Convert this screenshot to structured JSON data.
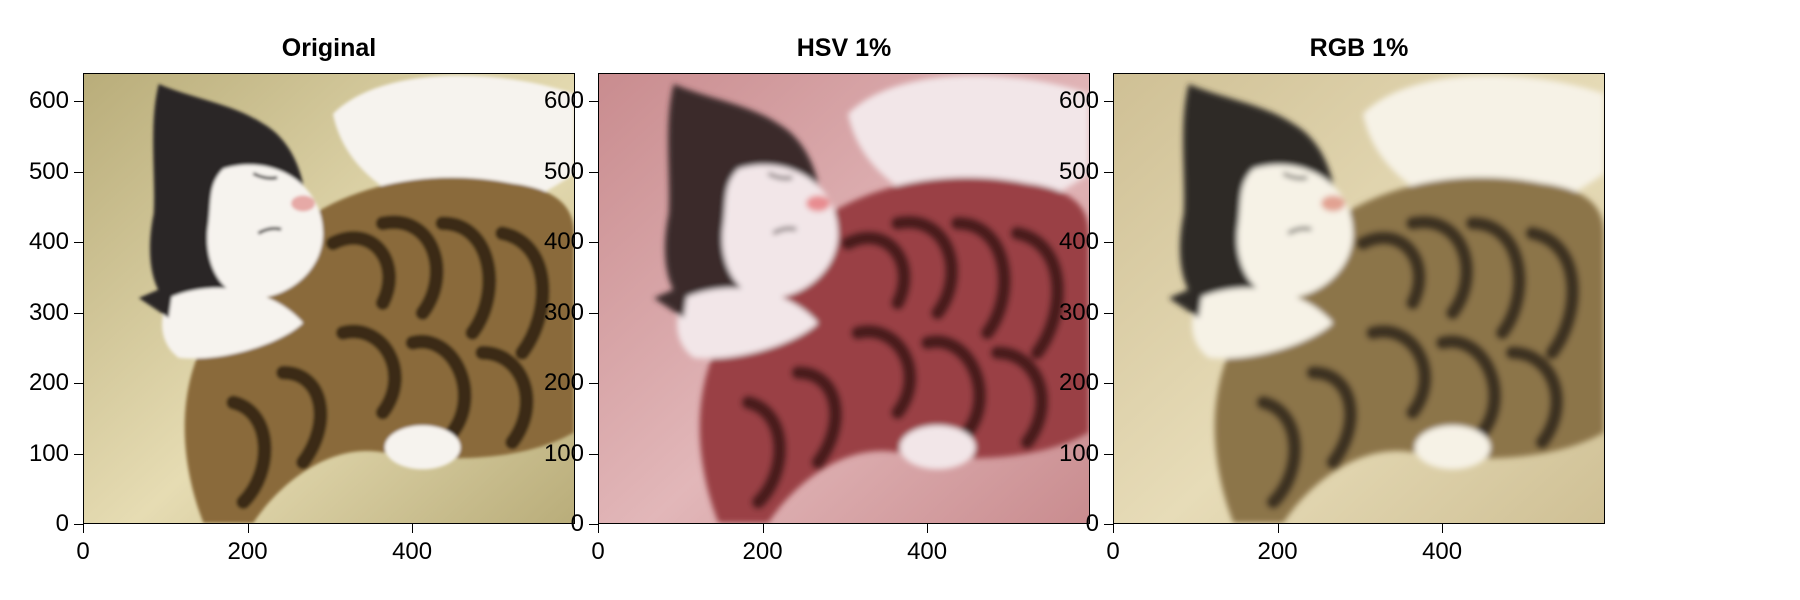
{
  "panels": [
    {
      "title": "Original",
      "image_subject": "kitten-photo",
      "tint": "natural",
      "palette": {
        "bg": "#b9ad7a",
        "bg_light": "#e6dcb3",
        "white": "#f6f3ee",
        "dark": "#2a2527",
        "fur": "#8a6a3a",
        "fur_dark": "#3a2a18",
        "nose": "#e6a9a6"
      }
    },
    {
      "title": "HSV 1%",
      "image_subject": "kitten-photo",
      "tint": "red",
      "palette": {
        "bg": "#c98c8f",
        "bg_light": "#e2b7b9",
        "white": "#f2e6e8",
        "dark": "#3a2a2c",
        "fur": "#9a4045",
        "fur_dark": "#4a1a1e",
        "nose": "#e88c90"
      }
    },
    {
      "title": "RGB 1%",
      "image_subject": "kitten-photo",
      "tint": "sepia",
      "palette": {
        "bg": "#cfc095",
        "bg_light": "#e7dcb8",
        "white": "#f6f2e6",
        "dark": "#2e2a26",
        "fur": "#8c7448",
        "fur_dark": "#3e3220",
        "nose": "#e2a292"
      }
    }
  ],
  "y_ticks": [
    0,
    100,
    200,
    300,
    400,
    500,
    600
  ],
  "x_ticks": [
    0,
    200,
    400
  ],
  "y_range": [
    0,
    640
  ],
  "x_range": [
    0,
    598
  ]
}
